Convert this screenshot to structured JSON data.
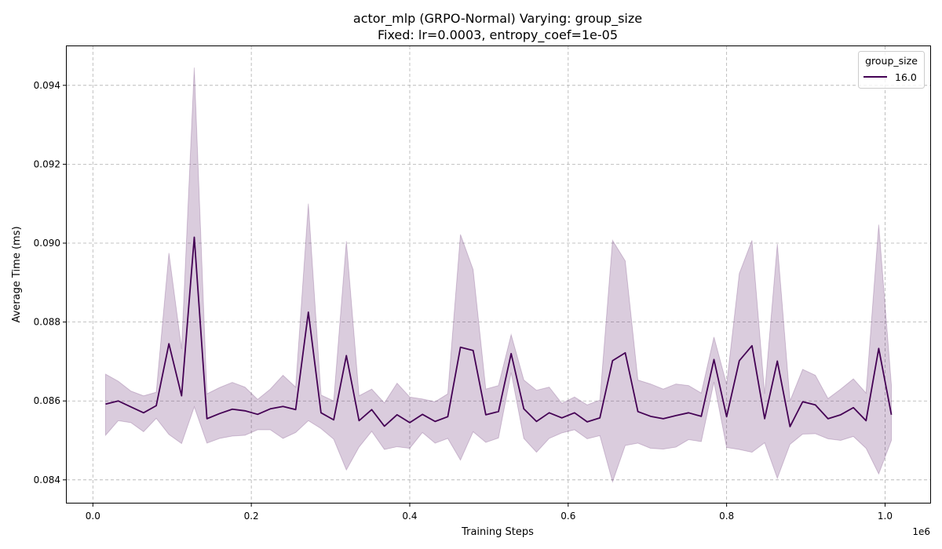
{
  "chart_data": {
    "type": "line",
    "title": "actor_mlp (GRPO-Normal) Varying: group_size",
    "subtitle": "Fixed: lr=0.0003, entropy_coef=1e-05",
    "xlabel": "Training Steps",
    "ylabel": "Average Time (ms)",
    "x_offset_label": "1e6",
    "xlim": [
      -33000,
      1057000
    ],
    "ylim": [
      0.08342,
      0.09499
    ],
    "xticks": [
      0,
      200000,
      400000,
      600000,
      800000,
      1000000
    ],
    "xtick_labels": [
      "0.0",
      "0.2",
      "0.4",
      "0.6",
      "0.8",
      "1.0"
    ],
    "yticks": [
      0.084,
      0.086,
      0.088,
      0.09,
      0.092,
      0.094
    ],
    "ytick_labels": [
      "0.084",
      "0.086",
      "0.088",
      "0.090",
      "0.092",
      "0.094"
    ],
    "grid": true,
    "legend": {
      "title": "group_size",
      "position": "upper right",
      "entries": [
        {
          "label": "16.0",
          "color": "#440154"
        }
      ]
    },
    "series": [
      {
        "name": "16.0",
        "color": "#440154",
        "band_color": "#440154",
        "band_opacity": 0.2,
        "x": [
          16000,
          32000,
          48000,
          64000,
          80000,
          96000,
          112000,
          128000,
          144000,
          160000,
          176000,
          192000,
          208000,
          224000,
          240000,
          256000,
          272000,
          288000,
          304000,
          320000,
          336000,
          352000,
          368000,
          384000,
          400000,
          416000,
          432000,
          448000,
          464000,
          480000,
          496000,
          512000,
          528000,
          544000,
          560000,
          576000,
          592000,
          608000,
          624000,
          640000,
          656000,
          672000,
          688000,
          704000,
          720000,
          736000,
          752000,
          768000,
          784000,
          800000,
          816000,
          832000,
          848000,
          864000,
          880000,
          896000,
          912000,
          928000,
          944000,
          960000,
          976000,
          992000,
          1008000
        ],
        "y": [
          0.08592,
          0.086,
          0.08585,
          0.0857,
          0.08588,
          0.08745,
          0.08613,
          0.09015,
          0.08555,
          0.08568,
          0.08579,
          0.08575,
          0.08566,
          0.0858,
          0.08586,
          0.08578,
          0.08825,
          0.0857,
          0.08552,
          0.08715,
          0.0855,
          0.08578,
          0.08536,
          0.08565,
          0.08545,
          0.08566,
          0.08548,
          0.0856,
          0.08736,
          0.08728,
          0.08565,
          0.08573,
          0.0872,
          0.0858,
          0.08548,
          0.0857,
          0.08557,
          0.0857,
          0.08547,
          0.08557,
          0.08702,
          0.08722,
          0.08573,
          0.08561,
          0.08555,
          0.08563,
          0.0857,
          0.08561,
          0.08705,
          0.0856,
          0.08702,
          0.0874,
          0.08555,
          0.08701,
          0.08535,
          0.08598,
          0.0859,
          0.08555,
          0.08565,
          0.08583,
          0.0855,
          0.08733,
          0.08565
        ],
        "upper": [
          0.08668,
          0.0865,
          0.08625,
          0.08613,
          0.08622,
          0.08975,
          0.08732,
          0.09445,
          0.08618,
          0.08634,
          0.08647,
          0.08635,
          0.08604,
          0.0863,
          0.08665,
          0.08635,
          0.091,
          0.08615,
          0.086,
          0.09005,
          0.08613,
          0.0863,
          0.08595,
          0.08645,
          0.0861,
          0.08605,
          0.08598,
          0.08618,
          0.09022,
          0.08933,
          0.0863,
          0.08639,
          0.08768,
          0.08653,
          0.08627,
          0.08635,
          0.08594,
          0.0861,
          0.0859,
          0.08602,
          0.09007,
          0.08955,
          0.08653,
          0.08643,
          0.0863,
          0.08643,
          0.08639,
          0.0862,
          0.08762,
          0.08642,
          0.08923,
          0.09007,
          0.08618,
          0.08998,
          0.086,
          0.0868,
          0.08665,
          0.08606,
          0.0863,
          0.08656,
          0.0862,
          0.09047,
          0.0864
        ],
        "lower": [
          0.08513,
          0.0855,
          0.08545,
          0.08522,
          0.08556,
          0.08515,
          0.08492,
          0.08585,
          0.08493,
          0.08505,
          0.08511,
          0.08513,
          0.08527,
          0.08527,
          0.08505,
          0.0852,
          0.0855,
          0.0853,
          0.08503,
          0.08425,
          0.08483,
          0.08523,
          0.08477,
          0.08484,
          0.0848,
          0.0852,
          0.08493,
          0.08505,
          0.0845,
          0.08522,
          0.08495,
          0.08506,
          0.08672,
          0.08505,
          0.0847,
          0.08505,
          0.08519,
          0.08527,
          0.08504,
          0.08512,
          0.08395,
          0.08487,
          0.08493,
          0.0848,
          0.08478,
          0.08483,
          0.08502,
          0.08497,
          0.08648,
          0.08482,
          0.08477,
          0.0847,
          0.08494,
          0.08404,
          0.0849,
          0.08516,
          0.08517,
          0.08504,
          0.085,
          0.0851,
          0.0848,
          0.08415,
          0.085
        ]
      }
    ]
  }
}
